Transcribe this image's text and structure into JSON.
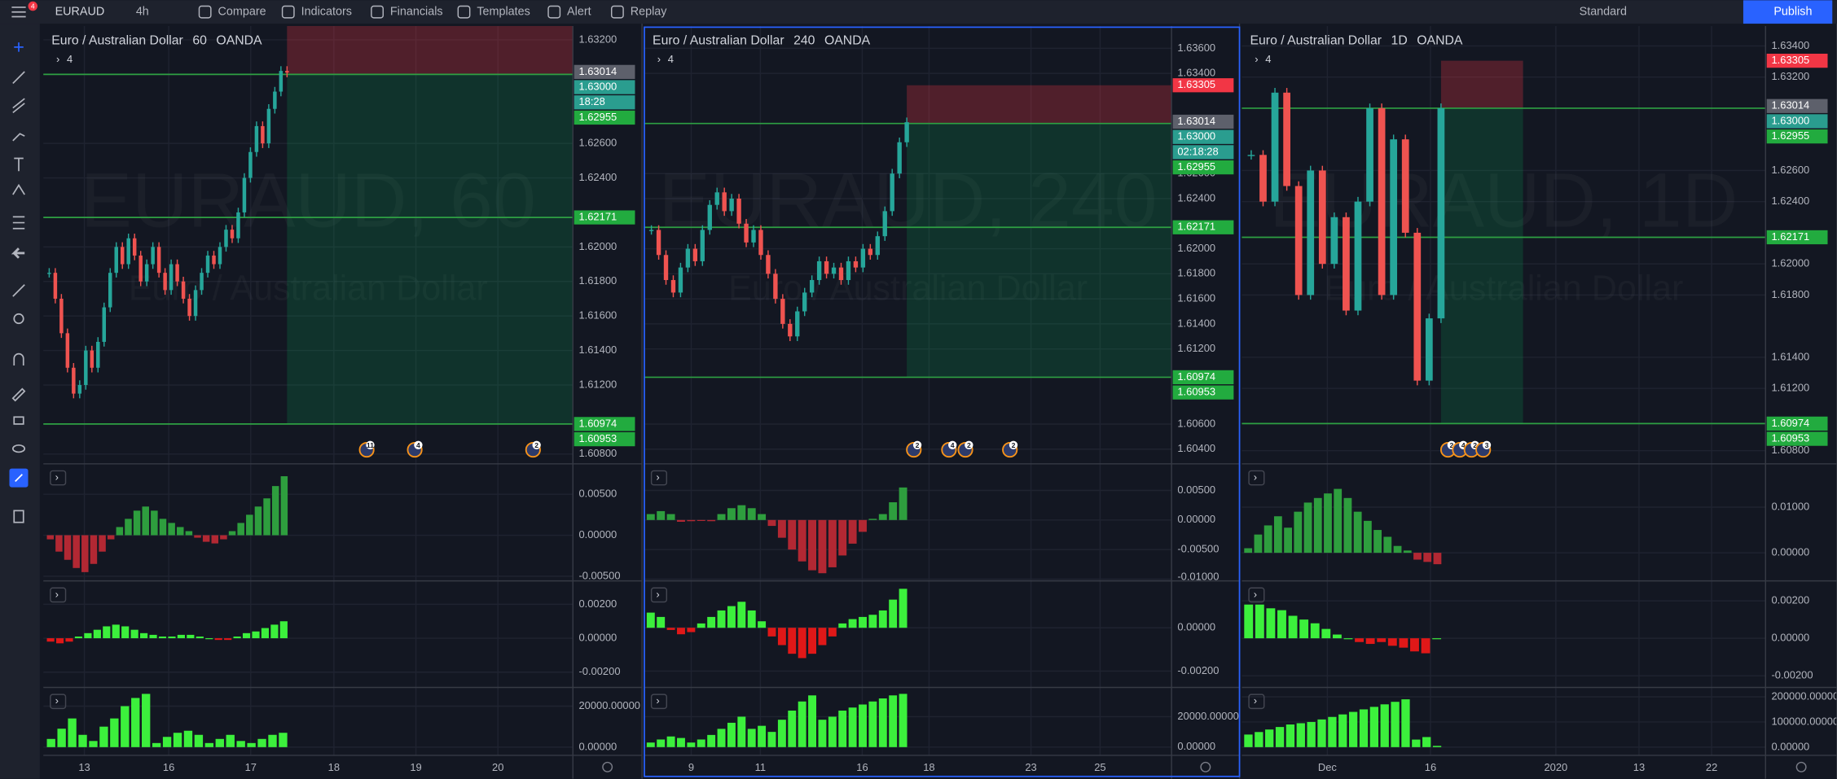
{
  "toolbar": {
    "notifications": "4",
    "symbol": "EURAUD",
    "interval": "4h",
    "items": [
      "Compare",
      "Indicators",
      "Financials",
      "Templates",
      "Alert",
      "Replay"
    ],
    "layout": "Standard",
    "publish": "Publish"
  },
  "panels": [
    {
      "symbol_name": "Euro / Australian Dollar",
      "interval": "60",
      "source": "OANDA",
      "collapsed_count": "4",
      "watermark": "EURAUD, 60",
      "watermark_sub": "Euro / Australian Dollar",
      "ylim": [
        1.6075,
        1.6328
      ],
      "yticks": [
        {
          "value": 1.632,
          "label": "1.63200"
        },
        {
          "value": 1.626,
          "label": "1.62600"
        },
        {
          "value": 1.624,
          "label": "1.62400"
        },
        {
          "value": 1.62,
          "label": "1.62000"
        },
        {
          "value": 1.618,
          "label": "1.61800"
        },
        {
          "value": 1.616,
          "label": "1.61600"
        },
        {
          "value": 1.614,
          "label": "1.61400"
        },
        {
          "value": 1.612,
          "label": "1.61200"
        },
        {
          "value": 1.608,
          "label": "1.60800"
        }
      ],
      "price_labels": [
        {
          "value": 1.63014,
          "label": "1.63014",
          "color": "#5d606b"
        },
        {
          "value": 1.63,
          "label": "1.63000",
          "color": "#2a9d8f"
        },
        {
          "label": "18:28",
          "color": "#2a9d8f"
        },
        {
          "value": 1.62955,
          "label": "1.62955",
          "color": "#22ab3f"
        },
        {
          "value": 1.62171,
          "label": "1.62171",
          "color": "#22ab3f"
        },
        {
          "value": 1.60974,
          "label": "1.60974",
          "color": "#22ab3f"
        },
        {
          "value": 1.60953,
          "label": "1.60953",
          "color": "#22ab3f"
        }
      ],
      "lines": [
        1.63,
        1.62171,
        1.60974
      ],
      "position": {
        "stop": 1.63305,
        "entry": 1.63,
        "target": 1.60974
      },
      "closes": [
        1.6185,
        1.617,
        1.615,
        1.613,
        1.6115,
        1.612,
        1.614,
        1.613,
        1.6145,
        1.6165,
        1.6185,
        1.62,
        1.619,
        1.6205,
        1.6195,
        1.618,
        1.619,
        1.62,
        1.6185,
        1.6175,
        1.619,
        1.618,
        1.617,
        1.616,
        1.6175,
        1.6185,
        1.6195,
        1.619,
        1.62,
        1.621,
        1.6205,
        1.622,
        1.624,
        1.6255,
        1.627,
        1.626,
        1.628,
        1.629,
        1.6302,
        1.6301
      ],
      "events": [
        "11",
        "4",
        "2"
      ],
      "subpanes": [
        {
          "ylim": [
            -0.00543,
            0.00857
          ],
          "yticks": [
            {
              "value": 0.005,
              "label": "0.00500"
            },
            {
              "value": 0,
              "label": "0.00000"
            },
            {
              "value": -0.005,
              "label": "-0.00500"
            }
          ],
          "colors": [
            "#2e9e3e",
            "#b22833"
          ],
          "values": [
            -0.0005,
            -0.002,
            -0.003,
            -0.004,
            -0.0045,
            -0.0035,
            -0.002,
            -0.0005,
            0.001,
            0.002,
            0.003,
            0.0035,
            0.003,
            0.002,
            0.0015,
            0.001,
            0.0005,
            -0.0003,
            -0.0008,
            -0.001,
            -0.0005,
            0.0005,
            0.0015,
            0.0025,
            0.0035,
            0.0045,
            0.006,
            0.0072
          ]
        },
        {
          "ylim": [
            -0.00283,
            0.00331
          ],
          "yticks": [
            {
              "value": 0.002,
              "label": "0.00200"
            },
            {
              "value": 0,
              "label": "0.00000"
            },
            {
              "value": -0.002,
              "label": "-0.00200"
            }
          ],
          "colors": [
            "#3cf03c",
            "#e01818"
          ],
          "values": [
            -0.0002,
            -0.0003,
            -0.0002,
            0.0001,
            0.0003,
            0.0005,
            0.0007,
            0.0008,
            0.0007,
            0.0005,
            0.0003,
            0.0002,
            0.0001,
            0.0001,
            0.0002,
            0.0002,
            0.0001,
            0,
            -0.0001,
            -0.0001,
            0.0001,
            0.0003,
            0.0004,
            0.0006,
            0.0008,
            0.001
          ]
        },
        {
          "ylim": [
            -4000,
            28571
          ],
          "yticks": [
            {
              "value": 20000,
              "label": "20000.00000"
            },
            {
              "value": 0,
              "label": "0.00000"
            }
          ],
          "colors": [
            "#3cf03c",
            "#e01818"
          ],
          "values": [
            4000,
            9000,
            14000,
            6000,
            3000,
            10000,
            14000,
            20000,
            24000,
            26000,
            2000,
            5000,
            7000,
            8000,
            6000,
            2000,
            4000,
            6000,
            3000,
            2000,
            4000,
            6000,
            7000
          ]
        }
      ],
      "x_labels": [
        "13",
        "16",
        "17",
        "18",
        "19",
        "20"
      ]
    },
    {
      "symbol_name": "Euro / Australian Dollar",
      "interval": "240",
      "source": "OANDA",
      "collapsed_count": "4",
      "watermark": "EURAUD, 240",
      "watermark_sub": "Euro / Australian Dollar",
      "ylim": [
        1.60292,
        1.63778
      ],
      "yticks": [
        {
          "value": 1.636,
          "label": "1.63600"
        },
        {
          "value": 1.634,
          "label": "1.63400"
        },
        {
          "value": 1.626,
          "label": "1.62600"
        },
        {
          "value": 1.624,
          "label": "1.62400"
        },
        {
          "value": 1.62,
          "label": "1.62000"
        },
        {
          "value": 1.618,
          "label": "1.61800"
        },
        {
          "value": 1.616,
          "label": "1.61600"
        },
        {
          "value": 1.614,
          "label": "1.61400"
        },
        {
          "value": 1.612,
          "label": "1.61200"
        },
        {
          "value": 1.606,
          "label": "1.60600"
        },
        {
          "value": 1.604,
          "label": "1.60400"
        }
      ],
      "price_labels": [
        {
          "value": 1.63305,
          "label": "1.63305",
          "color": "#f23645"
        },
        {
          "value": 1.63014,
          "label": "1.63014",
          "color": "#5d606b"
        },
        {
          "value": 1.63,
          "label": "1.63000",
          "color": "#2a9d8f"
        },
        {
          "label": "02:18:28",
          "color": "#2a9d8f"
        },
        {
          "value": 1.62955,
          "label": "1.62955",
          "color": "#22ab3f"
        },
        {
          "value": 1.62171,
          "label": "1.62171",
          "color": "#22ab3f"
        },
        {
          "value": 1.60974,
          "label": "1.60974",
          "color": "#22ab3f"
        },
        {
          "value": 1.60953,
          "label": "1.60953",
          "color": "#22ab3f"
        }
      ],
      "lines": [
        1.63,
        1.62171,
        1.60974
      ],
      "position": {
        "stop": 1.63305,
        "entry": 1.63,
        "target": 1.60974
      },
      "closes": [
        1.6215,
        1.6195,
        1.6175,
        1.6165,
        1.6185,
        1.62,
        1.619,
        1.6215,
        1.6235,
        1.6245,
        1.623,
        1.624,
        1.622,
        1.6205,
        1.6215,
        1.6195,
        1.618,
        1.616,
        1.614,
        1.613,
        1.615,
        1.6165,
        1.6175,
        1.619,
        1.618,
        1.6185,
        1.6175,
        1.619,
        1.6185,
        1.62,
        1.6195,
        1.621,
        1.623,
        1.626,
        1.6285,
        1.6301
      ],
      "events": [
        "2",
        "4",
        "2",
        "2"
      ],
      "subpanes": [
        {
          "ylim": [
            -0.0101,
            0.0093
          ],
          "yticks": [
            {
              "value": 0.005,
              "label": "0.00500"
            },
            {
              "value": 0,
              "label": "0.00000"
            },
            {
              "value": -0.005,
              "label": "-0.00500"
            },
            {
              "value": -0.01,
              "label": "-0.01000"
            }
          ],
          "colors": [
            "#2e9e3e",
            "#b22833"
          ],
          "values": [
            0.001,
            0.0015,
            0.001,
            -0.0003,
            -0.0002,
            -0.0001,
            -0.0002,
            0.001,
            0.002,
            0.0025,
            0.002,
            0.001,
            -0.001,
            -0.003,
            -0.005,
            -0.007,
            -0.0085,
            -0.009,
            -0.008,
            -0.006,
            -0.004,
            -0.002,
            0.0002,
            0.001,
            0.003,
            0.0055
          ]
        },
        {
          "ylim": [
            -0.0027,
            0.00211
          ],
          "yticks": [
            {
              "value": 0,
              "label": "0.00000"
            },
            {
              "value": -0.002,
              "label": "-0.00200"
            }
          ],
          "colors": [
            "#3cf03c",
            "#e01818"
          ],
          "values": [
            0.0007,
            0.0005,
            -0.0001,
            -0.0003,
            -0.0002,
            0.0002,
            0.0005,
            0.0008,
            0.001,
            0.0012,
            0.0008,
            0.0003,
            -0.0004,
            -0.0008,
            -0.0012,
            -0.0014,
            -0.0012,
            -0.0008,
            -0.0004,
            0.0002,
            0.0004,
            0.0005,
            0.0006,
            0.0008,
            0.0013,
            0.0018
          ]
        },
        {
          "ylim": [
            -5400,
            38460
          ],
          "yticks": [
            {
              "value": 20000,
              "label": "20000.00000"
            },
            {
              "value": 0,
              "label": "0.00000"
            }
          ],
          "colors": [
            "#3cf03c",
            "#e01818"
          ],
          "values": [
            3000,
            5000,
            7000,
            6000,
            3000,
            5000,
            8000,
            12000,
            16000,
            20000,
            12000,
            14000,
            10000,
            18000,
            24000,
            30000,
            34000,
            18000,
            20000,
            24000,
            26000,
            28000,
            30000,
            32000,
            34000,
            35000
          ]
        }
      ],
      "x_labels": [
        "9",
        "11",
        "16",
        "18",
        "23",
        "25"
      ]
    },
    {
      "symbol_name": "Euro / Australian Dollar",
      "interval": "1D",
      "source": "OANDA",
      "collapsed_count": "4",
      "watermark": "EURAUD, 1D",
      "watermark_sub": "Euro / Australian Dollar",
      "ylim": [
        1.60723,
        1.63528
      ],
      "yticks": [
        {
          "value": 1.634,
          "label": "1.63400"
        },
        {
          "value": 1.632,
          "label": "1.63200"
        },
        {
          "value": 1.626,
          "label": "1.62600"
        },
        {
          "value": 1.624,
          "label": "1.62400"
        },
        {
          "value": 1.62,
          "label": "1.62000"
        },
        {
          "value": 1.618,
          "label": "1.61800"
        },
        {
          "value": 1.614,
          "label": "1.61400"
        },
        {
          "value": 1.612,
          "label": "1.61200"
        },
        {
          "value": 1.608,
          "label": "1.60800"
        }
      ],
      "price_labels": [
        {
          "value": 1.63305,
          "label": "1.63305",
          "color": "#f23645"
        },
        {
          "value": 1.63014,
          "label": "1.63014",
          "color": "#5d606b"
        },
        {
          "value": 1.63,
          "label": "1.63000",
          "color": "#2a9d8f"
        },
        {
          "value": 1.62955,
          "label": "1.62955",
          "color": "#22ab3f"
        },
        {
          "value": 1.62171,
          "label": "1.62171",
          "color": "#22ab3f"
        },
        {
          "value": 1.60974,
          "label": "1.60974",
          "color": "#22ab3f"
        },
        {
          "value": 1.60953,
          "label": "1.60953",
          "color": "#22ab3f"
        }
      ],
      "lines": [
        1.63,
        1.62171,
        1.60974
      ],
      "position": {
        "stop": 1.63305,
        "entry": 1.63,
        "target": 1.60974
      },
      "closes": [
        1.627,
        1.624,
        1.631,
        1.625,
        1.618,
        1.626,
        1.62,
        1.623,
        1.617,
        1.624,
        1.63,
        1.618,
        1.628,
        1.622,
        1.6125,
        1.6165,
        1.63
      ],
      "events": [
        "2",
        "4",
        "2",
        "3"
      ],
      "subpanes": [
        {
          "ylim": [
            -0.0059,
            0.01923
          ],
          "yticks": [
            {
              "value": 0.01,
              "label": "0.01000"
            },
            {
              "value": 0,
              "label": "0.00000"
            }
          ],
          "colors": [
            "#2e9e3e",
            "#b22833"
          ],
          "values": [
            0.001,
            0.004,
            0.006,
            0.008,
            0.0055,
            0.009,
            0.011,
            0.012,
            0.013,
            0.014,
            0.012,
            0.009,
            0.007,
            0.005,
            0.0035,
            0.0015,
            0.0005,
            -0.0015,
            -0.002,
            -0.0025
          ]
        },
        {
          "ylim": [
            -0.00256,
            0.003
          ],
          "yticks": [
            {
              "value": 0.002,
              "label": "0.00200"
            },
            {
              "value": 0,
              "label": "0.00000"
            },
            {
              "value": -0.002,
              "label": "-0.00200"
            }
          ],
          "colors": [
            "#3cf03c",
            "#e01818"
          ],
          "values": [
            0.0018,
            0.0018,
            0.0016,
            0.0015,
            0.0012,
            0.001,
            0.0008,
            0.0005,
            0.0002,
            0,
            -0.0002,
            -0.0003,
            -0.0002,
            -0.0004,
            -0.0005,
            -0.0007,
            -0.0008,
            0
          ]
        },
        {
          "ylim": [
            -32560,
            232560
          ],
          "yticks": [
            {
              "value": 200000,
              "label": "200000.00000"
            },
            {
              "value": 100000,
              "label": "100000.00000"
            },
            {
              "value": 0,
              "label": "0.00000"
            }
          ],
          "colors": [
            "#3cf03c",
            "#e01818"
          ],
          "values": [
            50000,
            60000,
            70000,
            80000,
            90000,
            95000,
            100000,
            110000,
            120000,
            130000,
            140000,
            150000,
            160000,
            170000,
            180000,
            190000,
            30000,
            40000,
            5000
          ]
        }
      ],
      "x_labels": [
        "Dec",
        "16",
        "2020",
        "13",
        "22"
      ]
    }
  ]
}
